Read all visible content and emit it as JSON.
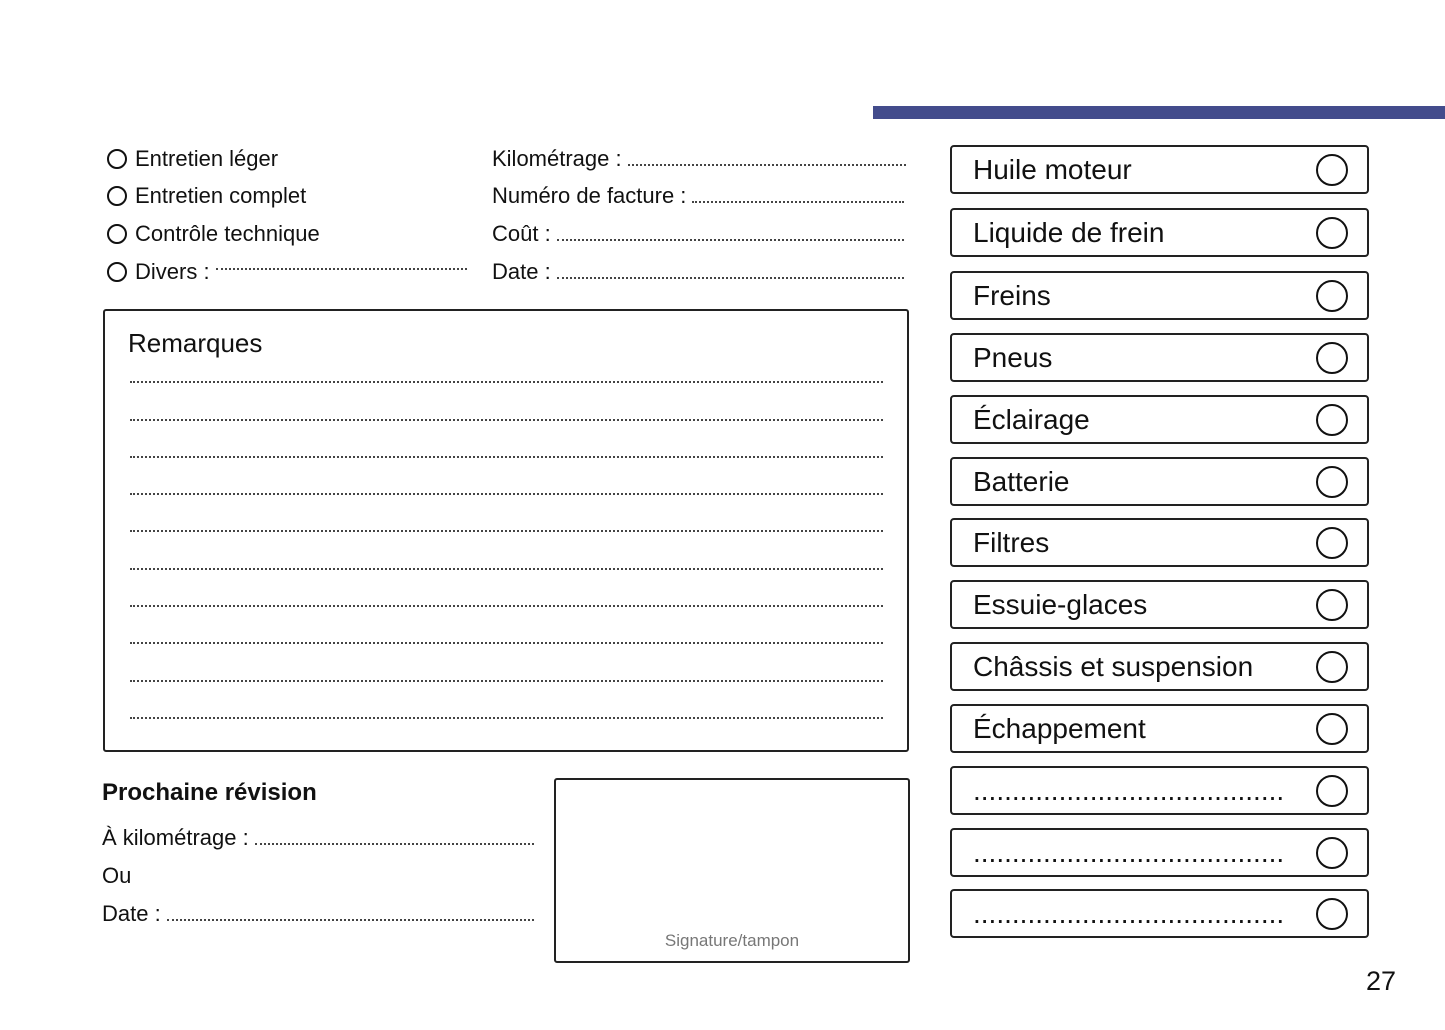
{
  "header": {
    "accent_color": "#434c8c"
  },
  "service_types": [
    {
      "label": "Entretien léger"
    },
    {
      "label": "Entretien complet"
    },
    {
      "label": "Contrôle technique"
    },
    {
      "label": "Divers :"
    }
  ],
  "fields": [
    {
      "label": "Kilométrage :"
    },
    {
      "label": "Numéro de facture :"
    },
    {
      "label": "Coût :"
    },
    {
      "label": "Date :"
    }
  ],
  "remarks": {
    "title": "Remarques"
  },
  "next_service": {
    "title": "Prochaine révision",
    "mileage_label": "À kilométrage :",
    "or_label": "Ou",
    "date_label": "Date :"
  },
  "signature": {
    "label": "Signature/tampon"
  },
  "checklist": [
    {
      "label": "Huile moteur"
    },
    {
      "label": "Liquide de frein"
    },
    {
      "label": "Freins"
    },
    {
      "label": "Pneus"
    },
    {
      "label": "Éclairage"
    },
    {
      "label": "Batterie"
    },
    {
      "label": "Filtres"
    },
    {
      "label": "Essuie-glaces"
    },
    {
      "label": "Châssis et suspension"
    },
    {
      "label": "Échappement"
    },
    {
      "label": "........................................"
    },
    {
      "label": "........................................"
    },
    {
      "label": "........................................"
    }
  ],
  "page_number": "27"
}
